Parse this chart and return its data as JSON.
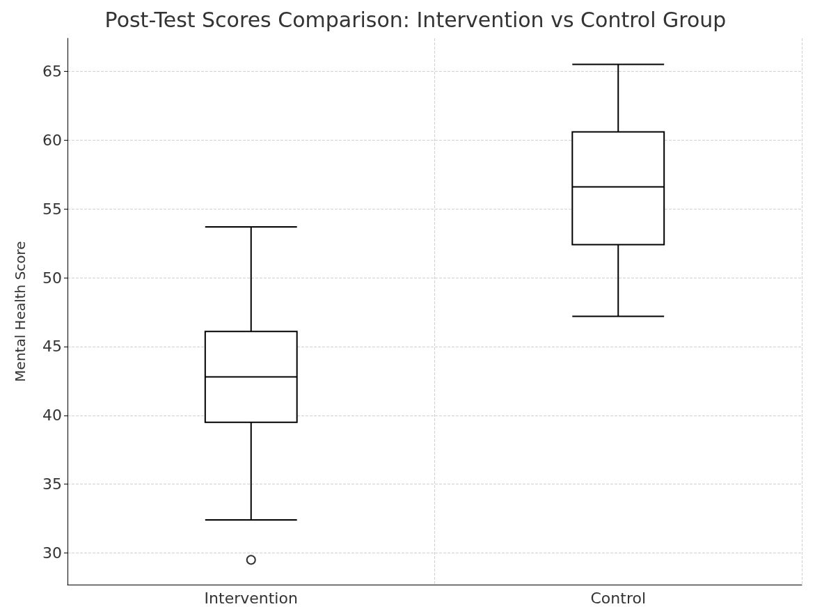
{
  "chart_data": {
    "type": "box",
    "title": "Post-Test Scores Comparison: Intervention vs Control Group",
    "ylabel": "Mental Health Score",
    "categories": [
      "Intervention",
      "Control"
    ],
    "series": [
      {
        "color": "#000000",
        "boxes": [
          {
            "low": 32.4,
            "q1": 39.5,
            "median": 42.8,
            "q3": 46.1,
            "high": 53.7,
            "outliers": [
              29.5
            ]
          },
          {
            "low": 47.2,
            "q1": 52.4,
            "median": 56.6,
            "q3": 60.6,
            "high": 65.5
          }
        ]
      }
    ],
    "ylim": [
      27.7,
      67.4
    ],
    "yticks": [
      30,
      35,
      40,
      45,
      50,
      55,
      60,
      65
    ],
    "grid": true
  }
}
